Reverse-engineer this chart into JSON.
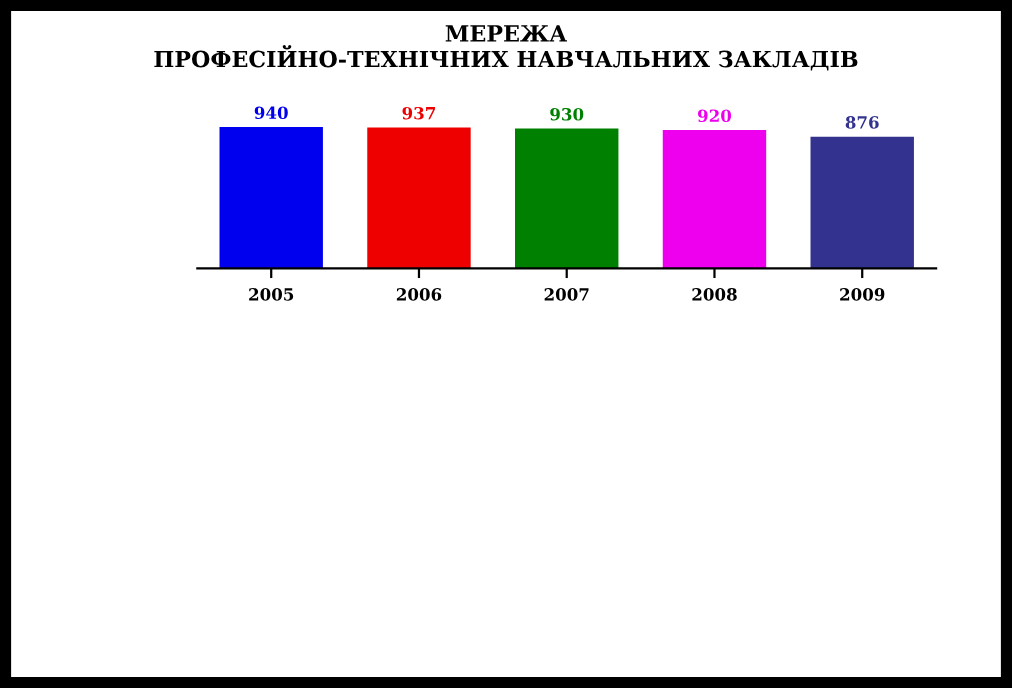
{
  "chart_data": {
    "type": "bar",
    "title": "МЕРЕЖА\nПРОФЕСІЙНО-ТЕХНІЧНИХ НАВЧАЛЬНИХ ЗАКЛАДІВ",
    "categories": [
      "2005",
      "2006",
      "2007",
      "2008",
      "2009"
    ],
    "values": [
      940,
      937,
      930,
      920,
      876
    ],
    "colors": [
      "#0000ee",
      "#ee0000",
      "#008000",
      "#ee00ee",
      "#33338f"
    ],
    "data_labels": true,
    "grid": false,
    "legend": false,
    "tick_labels": "x"
  }
}
